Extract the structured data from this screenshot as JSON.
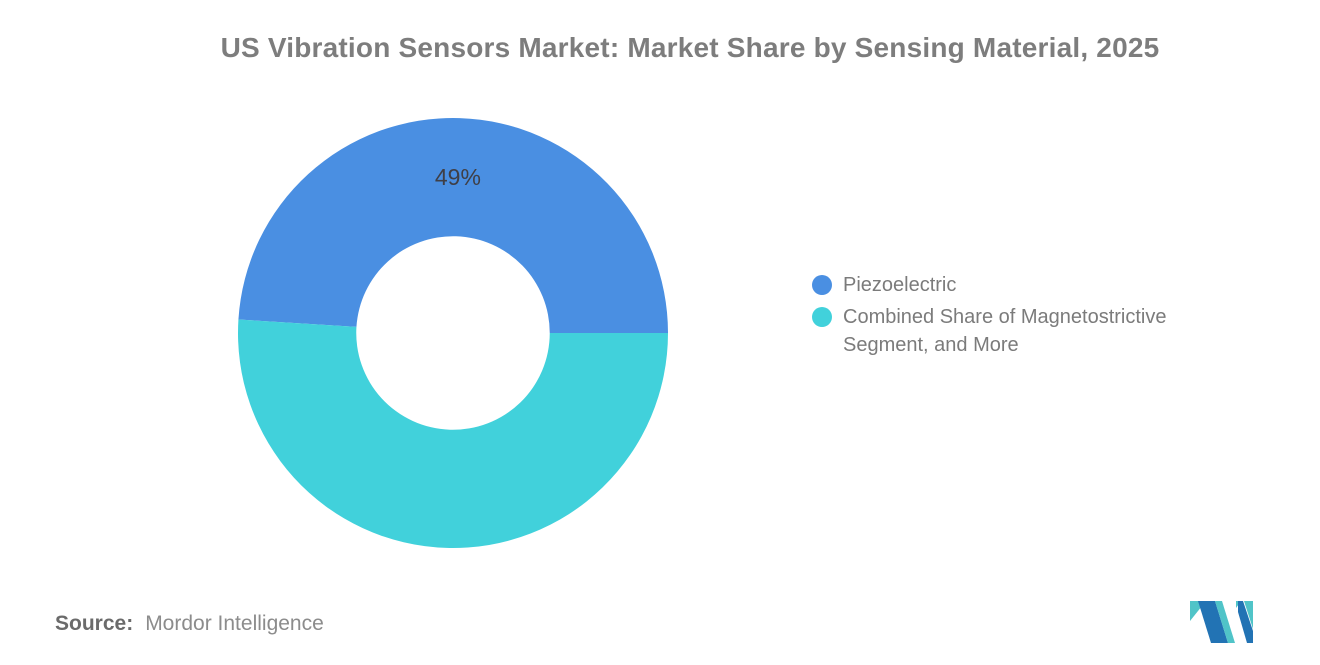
{
  "title": {
    "text": "US Vibration Sensors Market: Market Share by Sensing Material, 2025",
    "color": "#7d7d7d"
  },
  "chart_data": {
    "type": "pie",
    "subtype": "donut",
    "title": "US Vibration Sensors Market: Market Share by Sensing Material, 2025",
    "inner_radius_ratio": 0.45,
    "start_angle_deg": 0,
    "legend_position": "right",
    "data_label_color": "#3f3f46",
    "slices": [
      {
        "label": "Piezoelectric",
        "value": 49,
        "color": "#4A8FE2",
        "data_label": "49%"
      },
      {
        "label": "Combined Share of Magnetostrictive Segment, and More",
        "value": 51,
        "color": "#41D1DB",
        "data_label": ""
      }
    ]
  },
  "footer": {
    "source_label": "Source:",
    "source_value": "Mordor Intelligence"
  },
  "logo": {
    "name": "Mordor Intelligence",
    "teal": "#50C4C8",
    "blue": "#2273B4"
  }
}
